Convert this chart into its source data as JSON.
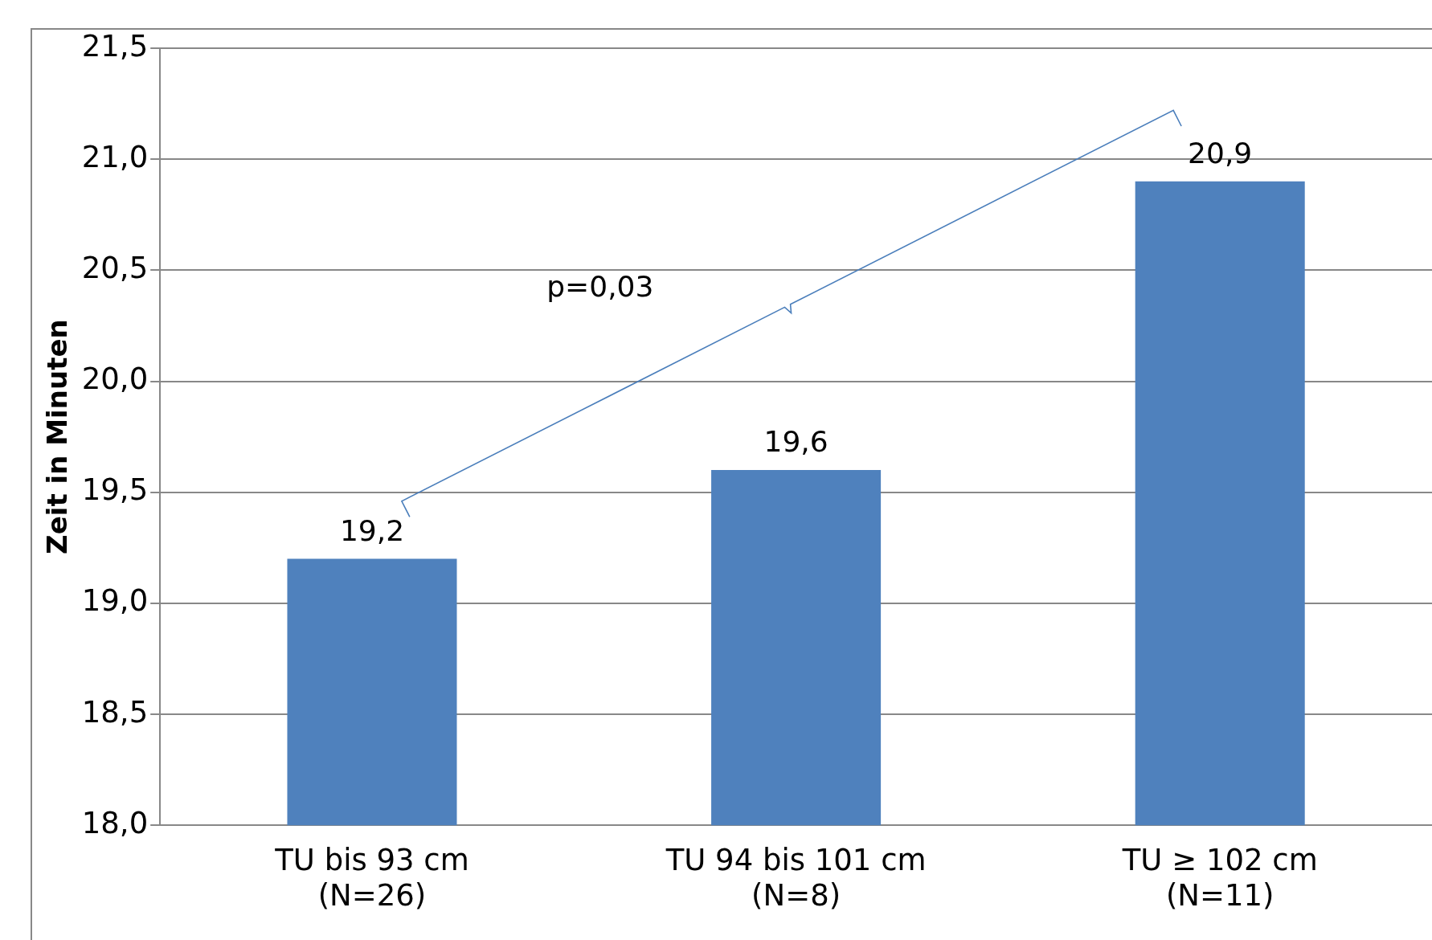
{
  "chart_data": {
    "type": "bar",
    "categories": [
      "TU bis 93 cm\n(N=26)",
      "TU 94 bis 101 cm\n(N=8)",
      "TU ≥ 102 cm\n(N=11)"
    ],
    "values": [
      19.2,
      19.6,
      20.9
    ],
    "value_labels": [
      "19,2",
      "19,6",
      "20,9"
    ],
    "color": "#4f81bd",
    "ylabel": "Zeit in Minuten",
    "ylim": [
      18,
      21.5
    ],
    "yticks": [
      {
        "value": 18,
        "label": "18,0"
      },
      {
        "value": 18.5,
        "label": "18,5"
      },
      {
        "value": 19,
        "label": "19,0"
      },
      {
        "value": 19.5,
        "label": "19,5"
      },
      {
        "value": 20,
        "label": "20,0"
      },
      {
        "value": 20.5,
        "label": "20,5"
      },
      {
        "value": 21,
        "label": "21,0"
      },
      {
        "value": 21.5,
        "label": "21,5"
      }
    ],
    "grid": "y",
    "legend": false,
    "annotations": [
      "p=0,03"
    ]
  }
}
